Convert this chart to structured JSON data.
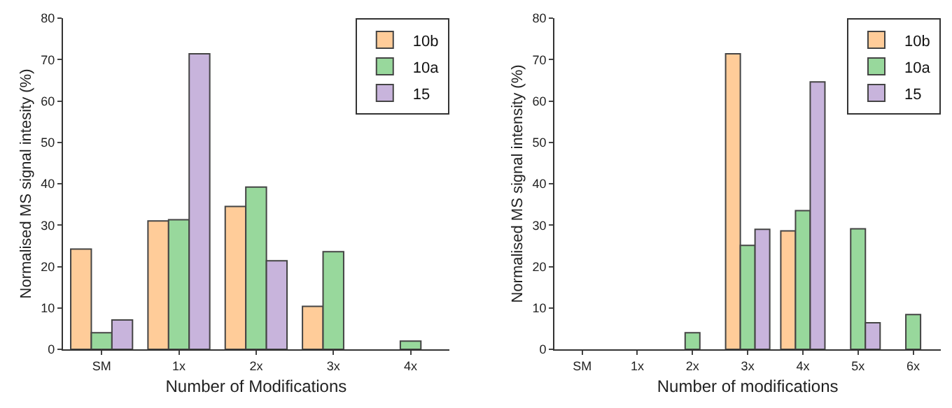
{
  "chart_data": [
    {
      "type": "bar",
      "xlabel": "Number of Modifications",
      "ylabel": "Normalised MS signal intesity (%)",
      "categories": [
        "SM",
        "1x",
        "2x",
        "3x",
        "4x"
      ],
      "ylim": [
        0,
        80
      ],
      "yticks": [
        0,
        10,
        20,
        30,
        40,
        50,
        60,
        70,
        80
      ],
      "legend": "top right",
      "series": [
        {
          "name": "10b",
          "color": "#ffcc99",
          "values": [
            24.2,
            31.0,
            34.5,
            10.4,
            null
          ]
        },
        {
          "name": "10a",
          "color": "#98d89c",
          "values": [
            4.0,
            31.3,
            39.2,
            23.6,
            2.0
          ]
        },
        {
          "name": "15",
          "color": "#c8b4dc",
          "values": [
            7.1,
            71.4,
            21.4,
            null,
            null
          ]
        }
      ]
    },
    {
      "type": "bar",
      "xlabel": "Number of modifications",
      "ylabel": "Normalised MS signal intensity (%)",
      "categories": [
        "SM",
        "1x",
        "2x",
        "3x",
        "4x",
        "5x",
        "6x"
      ],
      "ylim": [
        0,
        80
      ],
      "yticks": [
        0,
        10,
        20,
        30,
        40,
        50,
        60,
        70,
        80
      ],
      "legend": "top right",
      "series": [
        {
          "name": "10b",
          "color": "#ffcc99",
          "values": [
            null,
            null,
            null,
            71.4,
            28.6,
            null,
            null
          ]
        },
        {
          "name": "10a",
          "color": "#98d89c",
          "values": [
            null,
            null,
            4.0,
            25.1,
            33.5,
            29.1,
            8.4
          ]
        },
        {
          "name": "15",
          "color": "#c8b4dc",
          "values": [
            null,
            null,
            null,
            29.0,
            64.6,
            6.4,
            null
          ]
        }
      ]
    }
  ]
}
